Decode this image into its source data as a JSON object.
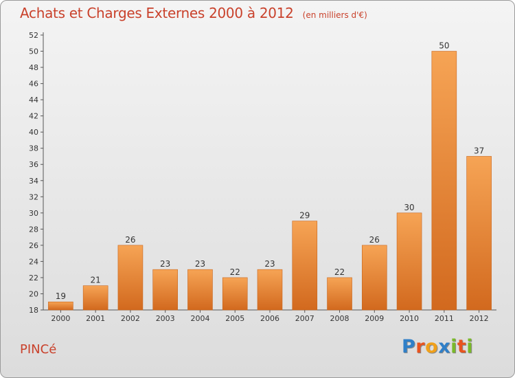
{
  "title": "Achats et Charges Externes 2000 à 2012",
  "unit": "(en milliers d'€)",
  "commune": "PINCé",
  "logo": {
    "letters": [
      {
        "ch": "P",
        "color": "#2f7fc8"
      },
      {
        "ch": "r",
        "color": "#e8541f"
      },
      {
        "ch": "o",
        "color": "#f0a01a"
      },
      {
        "ch": "x",
        "color": "#2f7fc8"
      },
      {
        "ch": "i",
        "color": "#7ab929"
      },
      {
        "ch": "t",
        "color": "#e8541f"
      },
      {
        "ch": "i",
        "color": "#7ab929"
      }
    ]
  },
  "chart_data": {
    "type": "bar",
    "categories": [
      "2000",
      "2001",
      "2002",
      "2003",
      "2004",
      "2005",
      "2006",
      "2007",
      "2008",
      "2009",
      "2010",
      "2011",
      "2012"
    ],
    "values": [
      19,
      21,
      26,
      23,
      23,
      22,
      23,
      29,
      22,
      26,
      30,
      50,
      37
    ],
    "ylim": [
      18,
      52
    ],
    "yticks": [
      18,
      20,
      22,
      24,
      26,
      28,
      30,
      32,
      34,
      36,
      38,
      40,
      42,
      44,
      46,
      48,
      50,
      52
    ],
    "grid": false,
    "bar_color": "#f0903a"
  }
}
